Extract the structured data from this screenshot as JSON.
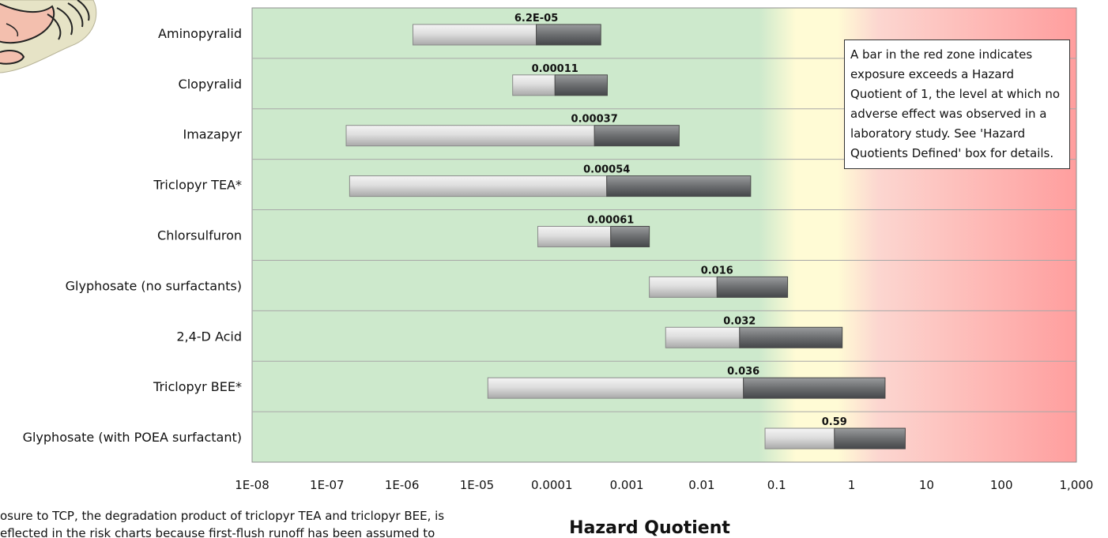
{
  "chart_data": {
    "type": "bar",
    "orientation": "horizontal",
    "xscale": "log",
    "xlim": [
      1e-08,
      1000
    ],
    "xlabel": "Hazard Quotient",
    "ylabel": "",
    "xticks": [
      "1E-08",
      "1E-07",
      "1E-06",
      "1E-05",
      "0.0001",
      "0.001",
      "0.01",
      "0.1",
      "1",
      "10",
      "100",
      "1,000"
    ],
    "zones": {
      "green": "#cde9cc",
      "yellow": "#fffbd5",
      "red": "#ff9e9e"
    },
    "colors": {
      "low_segment": "#d6d6d6",
      "high_segment": "#6c6e70"
    },
    "categories": [
      "Aminopyralid",
      "Clopyralid",
      "Imazapyr",
      "Triclopyr TEA*",
      "Chlorsulfuron",
      "Glyphosate (no surfactants)",
      "2,4-D Acid",
      "Triclopyr BEE*",
      "Glyphosate (with POEA surfactant)"
    ],
    "bars": [
      {
        "low": 1.4e-06,
        "mid": 6.2e-05,
        "high": 0.00045,
        "label": "6.2E-05"
      },
      {
        "low": 3e-05,
        "mid": 0.00011,
        "high": 0.00055,
        "label": "0.00011"
      },
      {
        "low": 1.8e-07,
        "mid": 0.00037,
        "high": 0.005,
        "label": "0.00037"
      },
      {
        "low": 2e-07,
        "mid": 0.00054,
        "high": 0.045,
        "label": "0.00054"
      },
      {
        "low": 6.5e-05,
        "mid": 0.00061,
        "high": 0.002,
        "label": "0.00061"
      },
      {
        "low": 0.002,
        "mid": 0.016,
        "high": 0.14,
        "label": "0.016"
      },
      {
        "low": 0.0033,
        "mid": 0.032,
        "high": 0.75,
        "label": "0.032"
      },
      {
        "low": 1.4e-05,
        "mid": 0.036,
        "high": 2.8,
        "label": "0.036"
      },
      {
        "low": 0.07,
        "mid": 0.59,
        "high": 5.2,
        "label": "0.59"
      }
    ]
  },
  "annotation": {
    "text": "A bar in the red zone indicates exposure exceeds a Hazard Quotient of 1, the level at which no adverse effect was observed in a laboratory study. See 'Hazard Quotients Defined' box for details."
  },
  "footnote": {
    "line1": "osure to TCP, the degradation product of triclopyr TEA and triclopyr BEE, is",
    "line2": "eflected in the risk charts because first-flush runoff has been assumed to"
  },
  "decoration": {
    "name": "cartoon-illustration-fragment"
  }
}
